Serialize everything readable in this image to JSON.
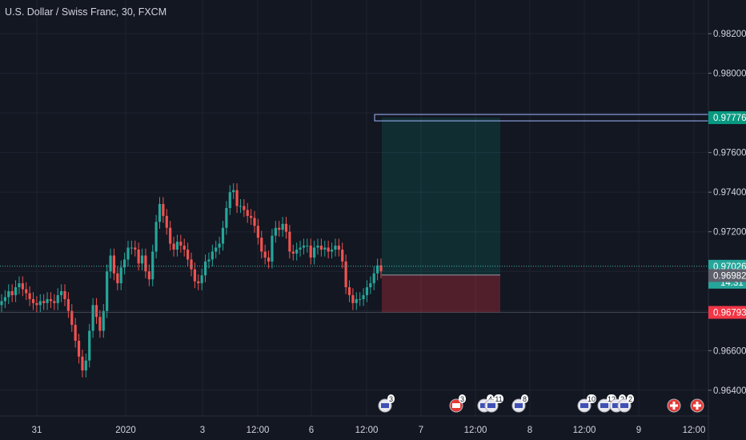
{
  "header": {
    "title": "U.S. Dollar / Swiss Franc, 30, FXCM"
  },
  "colors": {
    "background": "#131722",
    "grid": "#1f2330",
    "up": "#26a69a",
    "down": "#ef5350",
    "text": "#d1d4dc",
    "target_green": "#089981",
    "stop_red": "#f23645",
    "price_line": "#2962ff",
    "current_dot": "#4db6ac"
  },
  "chart_data": {
    "type": "candlestick",
    "title": "U.S. Dollar / Swiss Franc, 30, FXCM",
    "ylim": [
      0.9627,
      0.9837
    ],
    "y_ticks": [
      "0.98200",
      "0.98000",
      "0.97600",
      "0.97400",
      "0.97200",
      "0.96600",
      "0.96400"
    ],
    "x_ticks": [
      "31",
      "2020",
      "3",
      "12:00",
      "6",
      "12:00",
      "7",
      "12:00",
      "8",
      "12:00",
      "9",
      "12:00"
    ],
    "price_labels": {
      "target": "0.97776",
      "current": "0.97026",
      "countdown": "14:31",
      "entry": "0.96982",
      "stop": "0.96793"
    },
    "position": {
      "entry": 0.96982,
      "target": 0.97776,
      "stop": 0.96793,
      "current": 0.97026
    },
    "event_badges": [
      "3",
      "3",
      "4",
      "11",
      "8",
      "10",
      "12",
      "2",
      "2"
    ],
    "candles_close": [
      0.9685,
      0.9687,
      0.969,
      0.9688,
      0.9692,
      0.9694,
      0.9691,
      0.9689,
      0.9686,
      0.9684,
      0.9683,
      0.9685,
      0.9684,
      0.9686,
      0.9685,
      0.9684,
      0.9688,
      0.969,
      0.9686,
      0.968,
      0.9673,
      0.9665,
      0.9657,
      0.965,
      0.9655,
      0.967,
      0.9683,
      0.9677,
      0.967,
      0.968,
      0.97,
      0.9708,
      0.9699,
      0.9694,
      0.9702,
      0.9706,
      0.9712,
      0.9712,
      0.9711,
      0.9704,
      0.9708,
      0.97,
      0.9696,
      0.971,
      0.9725,
      0.9734,
      0.9728,
      0.9722,
      0.9714,
      0.9711,
      0.9715,
      0.9713,
      0.9711,
      0.9706,
      0.9701,
      0.9695,
      0.9694,
      0.9698,
      0.9705,
      0.9706,
      0.971,
      0.9712,
      0.9714,
      0.9722,
      0.9732,
      0.974,
      0.9741,
      0.9733,
      0.9733,
      0.9731,
      0.9728,
      0.9727,
      0.9723,
      0.9717,
      0.971,
      0.9707,
      0.9705,
      0.9718,
      0.9722,
      0.9721,
      0.9724,
      0.972,
      0.971,
      0.9709,
      0.9711,
      0.9712,
      0.9713,
      0.9713,
      0.9707,
      0.9712,
      0.9713,
      0.9711,
      0.9712,
      0.971,
      0.9711,
      0.9713,
      0.9711,
      0.9705,
      0.9692,
      0.9688,
      0.9684,
      0.9686,
      0.9686,
      0.9688,
      0.9692,
      0.9694,
      0.9699,
      0.9703,
      0.97
    ]
  }
}
